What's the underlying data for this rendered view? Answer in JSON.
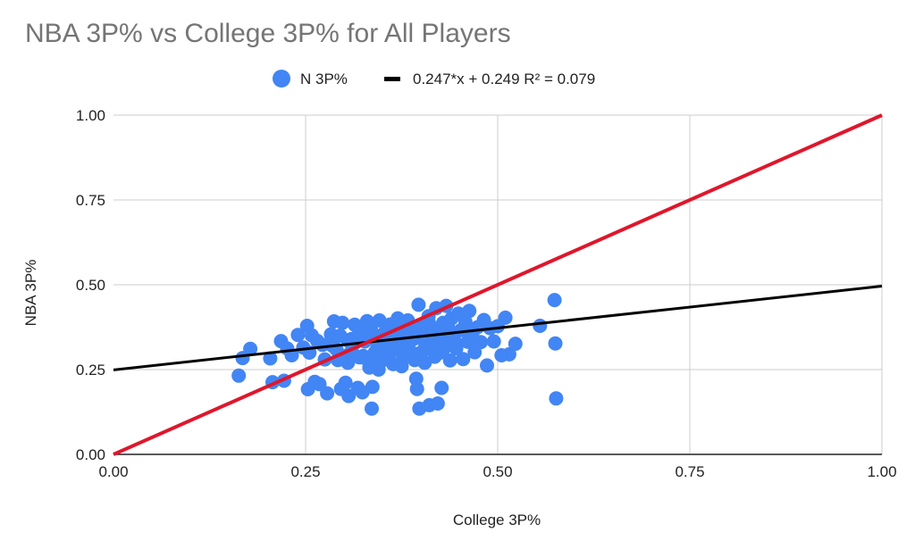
{
  "chart_data": {
    "type": "scatter",
    "title": "NBA 3P% vs College 3P% for All Players",
    "xlabel": "College 3P%",
    "ylabel": "NBA 3P%",
    "xlim": [
      0,
      1
    ],
    "ylim": [
      0,
      1
    ],
    "x_ticks": [
      "0.00",
      "0.25",
      "0.50",
      "0.75",
      "1.00"
    ],
    "y_ticks": [
      "0.00",
      "0.25",
      "0.50",
      "0.75",
      "1.00"
    ],
    "grid": true,
    "legend_position": "top",
    "series": [
      {
        "name": "N 3P%",
        "color": "#4285f4",
        "kind": "points",
        "points": [
          [
            0.163,
            0.232
          ],
          [
            0.168,
            0.284
          ],
          [
            0.178,
            0.311
          ],
          [
            0.204,
            0.283
          ],
          [
            0.207,
            0.213
          ],
          [
            0.218,
            0.334
          ],
          [
            0.222,
            0.217
          ],
          [
            0.226,
            0.312
          ],
          [
            0.232,
            0.292
          ],
          [
            0.24,
            0.352
          ],
          [
            0.247,
            0.315
          ],
          [
            0.252,
            0.379
          ],
          [
            0.253,
            0.192
          ],
          [
            0.258,
            0.351
          ],
          [
            0.262,
            0.214
          ],
          [
            0.268,
            0.207
          ],
          [
            0.272,
            0.323
          ],
          [
            0.278,
            0.18
          ],
          [
            0.283,
            0.354
          ],
          [
            0.287,
            0.392
          ],
          [
            0.292,
            0.278
          ],
          [
            0.296,
            0.193
          ],
          [
            0.298,
            0.388
          ],
          [
            0.302,
            0.211
          ],
          [
            0.305,
            0.336
          ],
          [
            0.306,
            0.172
          ],
          [
            0.31,
            0.305
          ],
          [
            0.314,
            0.382
          ],
          [
            0.318,
            0.196
          ],
          [
            0.32,
            0.286
          ],
          [
            0.323,
            0.364
          ],
          [
            0.324,
            0.183
          ],
          [
            0.327,
            0.333
          ],
          [
            0.33,
            0.393
          ],
          [
            0.333,
            0.256
          ],
          [
            0.336,
            0.135
          ],
          [
            0.337,
            0.199
          ],
          [
            0.34,
            0.352
          ],
          [
            0.343,
            0.311
          ],
          [
            0.346,
            0.395
          ],
          [
            0.348,
            0.274
          ],
          [
            0.351,
            0.338
          ],
          [
            0.354,
            0.362
          ],
          [
            0.357,
            0.294
          ],
          [
            0.36,
            0.383
          ],
          [
            0.362,
            0.322
          ],
          [
            0.364,
            0.266
          ],
          [
            0.367,
            0.349
          ],
          [
            0.37,
            0.401
          ],
          [
            0.372,
            0.309
          ],
          [
            0.375,
            0.372
          ],
          [
            0.377,
            0.285
          ],
          [
            0.38,
            0.331
          ],
          [
            0.383,
            0.395
          ],
          [
            0.385,
            0.352
          ],
          [
            0.387,
            0.302
          ],
          [
            0.39,
            0.368
          ],
          [
            0.392,
            0.278
          ],
          [
            0.394,
            0.223
          ],
          [
            0.395,
            0.193
          ],
          [
            0.397,
            0.441
          ],
          [
            0.398,
            0.135
          ],
          [
            0.4,
            0.342
          ],
          [
            0.402,
            0.383
          ],
          [
            0.405,
            0.311
          ],
          [
            0.407,
            0.356
          ],
          [
            0.41,
            0.407
          ],
          [
            0.411,
            0.145
          ],
          [
            0.413,
            0.327
          ],
          [
            0.416,
            0.372
          ],
          [
            0.418,
            0.288
          ],
          [
            0.42,
            0.431
          ],
          [
            0.422,
            0.15
          ],
          [
            0.424,
            0.35
          ],
          [
            0.427,
            0.196
          ],
          [
            0.429,
            0.388
          ],
          [
            0.431,
            0.315
          ],
          [
            0.433,
            0.438
          ],
          [
            0.435,
            0.36
          ],
          [
            0.438,
            0.277
          ],
          [
            0.44,
            0.401
          ],
          [
            0.443,
            0.338
          ],
          [
            0.446,
            0.312
          ],
          [
            0.449,
            0.415
          ],
          [
            0.452,
            0.366
          ],
          [
            0.455,
            0.281
          ],
          [
            0.458,
            0.39
          ],
          [
            0.461,
            0.332
          ],
          [
            0.463,
            0.423
          ],
          [
            0.467,
            0.358
          ],
          [
            0.47,
            0.301
          ],
          [
            0.474,
            0.375
          ],
          [
            0.478,
            0.331
          ],
          [
            0.482,
            0.396
          ],
          [
            0.486,
            0.262
          ],
          [
            0.49,
            0.372
          ],
          [
            0.495,
            0.333
          ],
          [
            0.5,
            0.378
          ],
          [
            0.505,
            0.292
          ],
          [
            0.51,
            0.403
          ],
          [
            0.515,
            0.295
          ],
          [
            0.523,
            0.326
          ],
          [
            0.555,
            0.379
          ],
          [
            0.574,
            0.455
          ],
          [
            0.575,
            0.327
          ],
          [
            0.576,
            0.165
          ],
          [
            0.255,
            0.3
          ],
          [
            0.265,
            0.335
          ],
          [
            0.275,
            0.28
          ],
          [
            0.285,
            0.32
          ],
          [
            0.295,
            0.35
          ],
          [
            0.305,
            0.27
          ],
          [
            0.315,
            0.33
          ],
          [
            0.325,
            0.29
          ],
          [
            0.335,
            0.37
          ],
          [
            0.345,
            0.25
          ],
          [
            0.355,
            0.32
          ],
          [
            0.365,
            0.38
          ],
          [
            0.375,
            0.26
          ],
          [
            0.385,
            0.33
          ],
          [
            0.395,
            0.36
          ],
          [
            0.405,
            0.27
          ],
          [
            0.415,
            0.34
          ],
          [
            0.425,
            0.3
          ],
          [
            0.435,
            0.38
          ],
          [
            0.445,
            0.33
          ],
          [
            0.31,
            0.34
          ],
          [
            0.34,
            0.3
          ],
          [
            0.36,
            0.34
          ],
          [
            0.38,
            0.31
          ],
          [
            0.4,
            0.3
          ],
          [
            0.42,
            0.36
          ],
          [
            0.44,
            0.35
          ],
          [
            0.33,
            0.28
          ],
          [
            0.37,
            0.39
          ],
          [
            0.39,
            0.34
          ],
          [
            0.29,
            0.31
          ],
          [
            0.32,
            0.36
          ],
          [
            0.35,
            0.28
          ],
          [
            0.41,
            0.39
          ],
          [
            0.43,
            0.33
          ],
          [
            0.36,
            0.3
          ],
          [
            0.38,
            0.36
          ],
          [
            0.34,
            0.34
          ],
          [
            0.4,
            0.35
          ],
          [
            0.3,
            0.29
          ]
        ]
      },
      {
        "name": "0.247*x + 0.249 R² = 0.079",
        "color": "#000000",
        "kind": "trendline",
        "slope": 0.247,
        "intercept": 0.249
      },
      {
        "color": "#e0162b",
        "kind": "reference-line",
        "points": [
          [
            0,
            0
          ],
          [
            1,
            1
          ]
        ]
      }
    ]
  }
}
